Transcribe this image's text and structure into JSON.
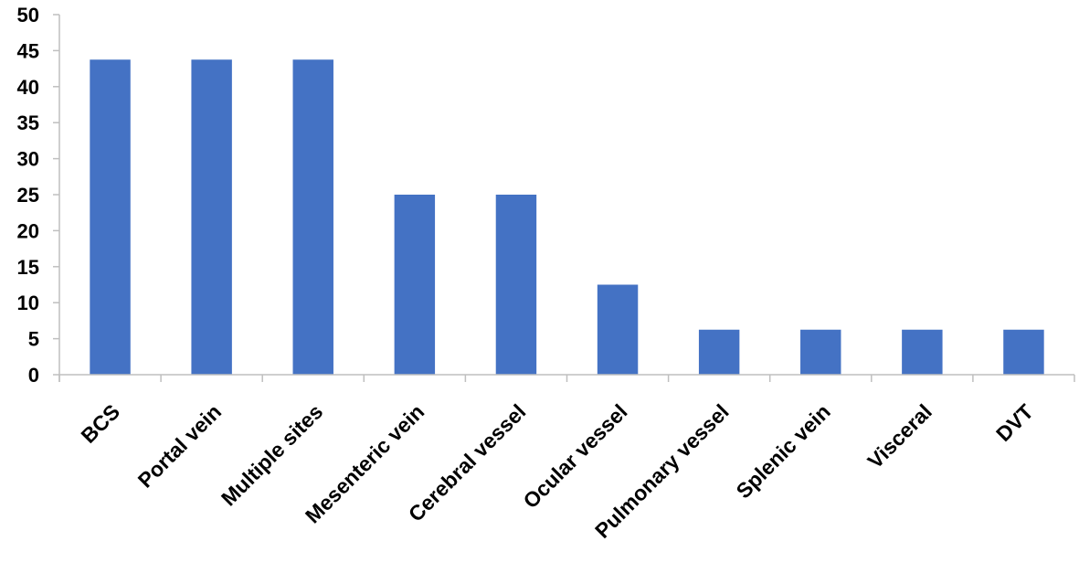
{
  "chart_data": {
    "type": "bar",
    "categories": [
      "BCS",
      "Portal vein",
      "Multiple sites",
      "Mesenteric vein",
      "Cerebral vessel",
      "Ocular vessel",
      "Pulmonary vessel",
      "Splenic vein",
      "Visceral",
      "DVT"
    ],
    "values": [
      43.75,
      43.75,
      43.75,
      25,
      25,
      12.5,
      6.25,
      6.25,
      6.25,
      6.25
    ],
    "title": "",
    "xlabel": "",
    "ylabel": "",
    "ylim": [
      0,
      50
    ],
    "yticks": [
      0,
      5,
      10,
      15,
      20,
      25,
      30,
      35,
      40,
      45,
      50
    ],
    "grid": false,
    "legend": "none",
    "bar_color": "#4472c4"
  }
}
